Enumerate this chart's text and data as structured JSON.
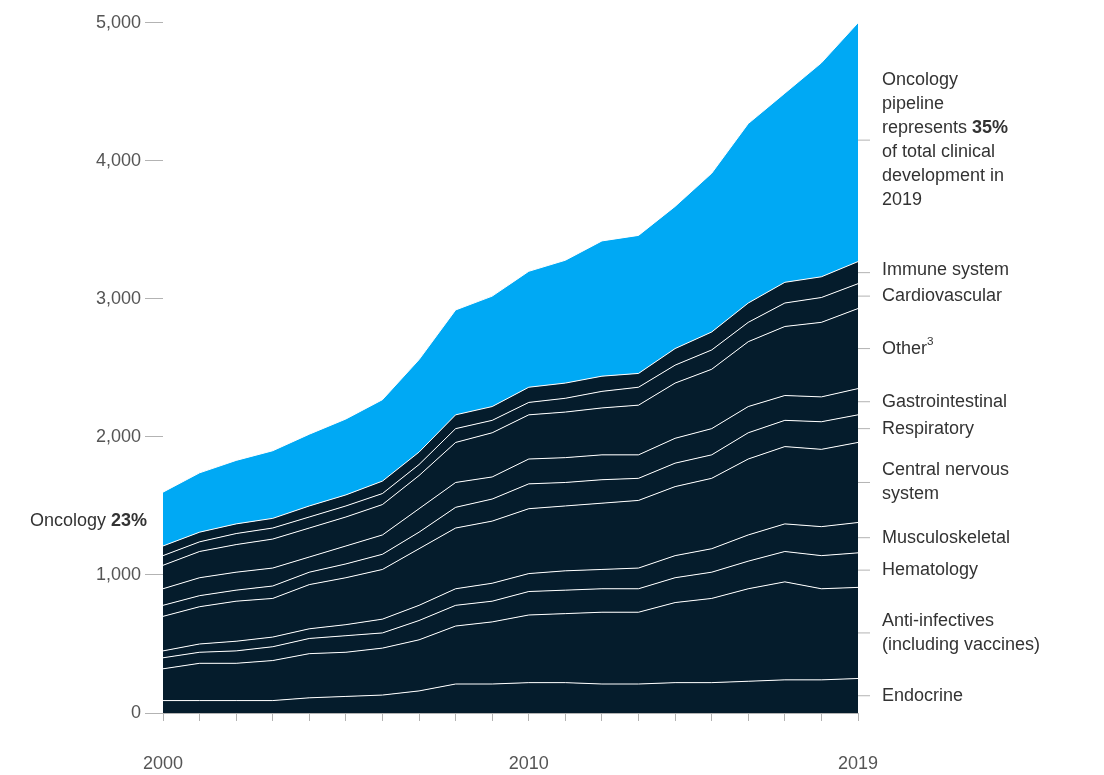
{
  "chart_data": {
    "type": "area",
    "stacked": true,
    "legend": false,
    "x": [
      2000,
      2001,
      2002,
      2003,
      2004,
      2005,
      2006,
      2007,
      2008,
      2009,
      2010,
      2011,
      2012,
      2013,
      2014,
      2015,
      2016,
      2017,
      2018,
      2019
    ],
    "xlim": [
      2000,
      2019
    ],
    "xticks": [
      2000,
      {
        "value": 2001,
        "label": null
      },
      {
        "value": 2002,
        "label": null
      },
      {
        "value": 2003,
        "label": null
      },
      {
        "value": 2004,
        "label": null
      },
      {
        "value": 2005,
        "label": null
      },
      {
        "value": 2006,
        "label": null
      },
      {
        "value": 2007,
        "label": null
      },
      {
        "value": 2008,
        "label": null
      },
      {
        "value": 2009,
        "label": null
      },
      2010,
      {
        "value": 2011,
        "label": null
      },
      {
        "value": 2012,
        "label": null
      },
      {
        "value": 2013,
        "label": null
      },
      {
        "value": 2014,
        "label": null
      },
      {
        "value": 2015,
        "label": null
      },
      {
        "value": 2016,
        "label": null
      },
      {
        "value": 2017,
        "label": null
      },
      {
        "value": 2018,
        "label": null
      },
      2019
    ],
    "ylim": [
      0,
      5000
    ],
    "yticks": [
      0,
      {
        "value": 1000,
        "label": "1,000"
      },
      {
        "value": 2000,
        "label": "2,000"
      },
      {
        "value": 3000,
        "label": "3,000"
      },
      {
        "value": 4000,
        "label": "4,000"
      },
      {
        "value": 5000,
        "label": "5,000"
      }
    ],
    "series": [
      {
        "name": "Endocrine",
        "color": "#051c2c",
        "values": [
          90,
          90,
          90,
          90,
          110,
          120,
          130,
          160,
          210,
          210,
          220,
          220,
          210,
          210,
          220,
          220,
          230,
          240,
          240,
          250
        ]
      },
      {
        "name": "Anti-infectives (including vaccines)",
        "color": "#051c2c",
        "values": [
          230,
          270,
          270,
          290,
          320,
          320,
          340,
          370,
          420,
          450,
          490,
          500,
          520,
          520,
          580,
          610,
          670,
          710,
          660,
          660
        ]
      },
      {
        "name": "Hematology",
        "color": "#051c2c",
        "values": [
          80,
          80,
          90,
          100,
          110,
          120,
          110,
          140,
          150,
          150,
          170,
          170,
          170,
          170,
          180,
          190,
          200,
          220,
          240,
          250
        ]
      },
      {
        "name": "Musculoskeletal",
        "color": "#051c2c",
        "values": [
          50,
          60,
          70,
          70,
          70,
          80,
          100,
          110,
          120,
          130,
          130,
          140,
          140,
          150,
          160,
          170,
          190,
          200,
          210,
          220
        ]
      },
      {
        "name": "Central nervous system",
        "color": "#051c2c",
        "values": [
          250,
          270,
          290,
          280,
          320,
          340,
          360,
          410,
          440,
          450,
          470,
          470,
          480,
          490,
          500,
          510,
          550,
          560,
          560,
          580
        ]
      },
      {
        "name": "Respiratory",
        "color": "#051c2c",
        "values": [
          80,
          80,
          80,
          90,
          90,
          100,
          110,
          120,
          150,
          160,
          180,
          170,
          170,
          160,
          170,
          170,
          190,
          190,
          200,
          200
        ]
      },
      {
        "name": "Gastrointestinal",
        "color": "#051c2c",
        "values": [
          120,
          130,
          130,
          130,
          110,
          130,
          140,
          170,
          180,
          160,
          180,
          180,
          180,
          170,
          180,
          190,
          190,
          180,
          180,
          190
        ]
      },
      {
        "name": "Other$^{3}$",
        "color": "#051c2c",
        "values": [
          170,
          190,
          200,
          210,
          210,
          210,
          220,
          240,
          290,
          320,
          320,
          330,
          340,
          360,
          400,
          430,
          470,
          500,
          540,
          580
        ]
      },
      {
        "name": "Cardiovascular",
        "color": "#051c2c",
        "values": [
          70,
          70,
          80,
          80,
          80,
          80,
          80,
          80,
          100,
          90,
          90,
          100,
          120,
          130,
          130,
          140,
          140,
          170,
          180,
          180
        ]
      },
      {
        "name": "Immune system",
        "color": "#051c2c",
        "values": [
          70,
          70,
          70,
          70,
          80,
          80,
          90,
          90,
          100,
          100,
          110,
          110,
          110,
          100,
          120,
          130,
          140,
          150,
          150,
          160
        ]
      },
      {
        "color": "#00a9f4",
        "values": [
          390,
          430,
          460,
          490,
          520,
          550,
          590,
          670,
          760,
          800,
          840,
          890,
          980,
          1000,
          1030,
          1150,
          1300,
          1370,
          1550,
          1730
        ]
      }
    ],
    "annotations": [
      {
        "text": "Oncology 23%",
        "x": 2000,
        "y": 1390
      },
      {
        "text": "Oncology pipeline represents 35% of total clinical development in 2019",
        "x": 2019,
        "y": 4150
      }
    ]
  }
}
